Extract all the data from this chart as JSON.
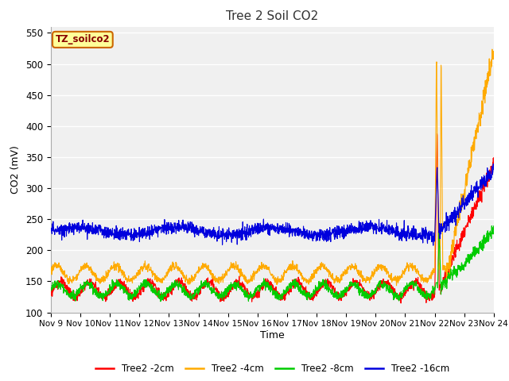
{
  "title": "Tree 2 Soil CO2",
  "xlabel": "Time",
  "ylabel": "CO2 (mV)",
  "ylim": [
    100,
    560
  ],
  "xlim": [
    0,
    15
  ],
  "figure_bg": "#ffffff",
  "plot_bg": "#f0f0f0",
  "grid_color": "#ffffff",
  "colors": {
    "2cm": "#ff0000",
    "4cm": "#ffaa00",
    "8cm": "#00cc00",
    "16cm": "#0000dd"
  },
  "legend_labels": [
    "Tree2 -2cm",
    "Tree2 -4cm",
    "Tree2 -8cm",
    "Tree2 -16cm"
  ],
  "xtick_labels": [
    "Nov 9",
    "Nov 10",
    "Nov 11",
    "Nov 12",
    "Nov 13",
    "Nov 14",
    "Nov 15",
    "Nov 16",
    "Nov 17",
    "Nov 18",
    "Nov 19",
    "Nov 20",
    "Nov 21",
    "Nov 22",
    "Nov 23",
    "Nov 24"
  ],
  "annotation_text": "TZ_soilco2",
  "annotation_bg": "#ffff99",
  "annotation_border": "#cc6600"
}
